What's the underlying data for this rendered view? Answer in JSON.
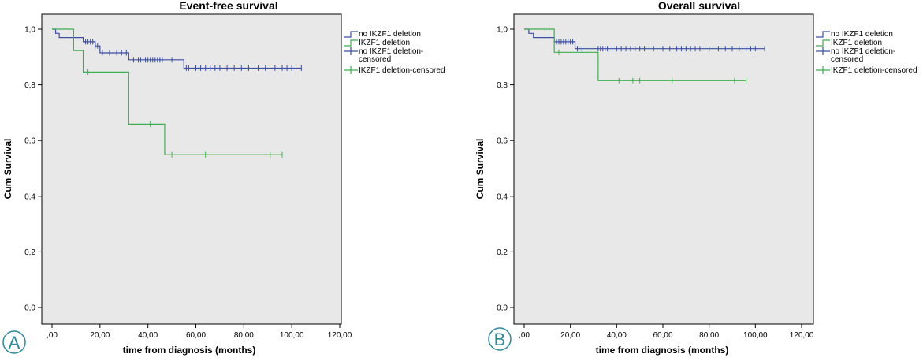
{
  "chart_data": [
    {
      "type": "line",
      "panel_label": "A",
      "title": "Event-free survival",
      "xlabel": "time from diagnosis (months)",
      "ylabel": "Cum Survival",
      "xlim": [
        0,
        120
      ],
      "ylim": [
        0,
        1
      ],
      "x_ticks": [
        ",00",
        "20,00",
        "40,00",
        "60,00",
        "80,00",
        "100,00",
        "120,00"
      ],
      "y_ticks": [
        "0,0",
        "0,2",
        "0,4",
        "0,6",
        "0,8",
        "1,0"
      ],
      "legend_position": "right",
      "legend": [
        "no IKZF1 deletion",
        "IKZF1 deletion",
        "no IKZF1 deletion-censored",
        "IKZF1 deletion-censored"
      ],
      "colors": {
        "no_deletion": "#3b4ea3",
        "deletion": "#3fae4e",
        "plot_bg": "#e8e8e8"
      },
      "series": [
        {
          "name": "no IKZF1 deletion",
          "color": "#3b4ea3",
          "x": [
            0,
            1.5,
            3,
            13,
            18,
            20,
            32,
            55,
            104
          ],
          "y": [
            1.0,
            0.985,
            0.97,
            0.955,
            0.94,
            0.915,
            0.89,
            0.86,
            0.86
          ],
          "censored_x": [
            14,
            15,
            16,
            17,
            18,
            19,
            21,
            24,
            27,
            29,
            31,
            34,
            36,
            37,
            38,
            39,
            40,
            41,
            42,
            43,
            44,
            45,
            46,
            50,
            56,
            57,
            60,
            62,
            64,
            66,
            68,
            70,
            73,
            76,
            79,
            82,
            86,
            89,
            93,
            96,
            98,
            100,
            104
          ]
        },
        {
          "name": "IKZF1 deletion",
          "color": "#3fae4e",
          "x": [
            0,
            9,
            13,
            32,
            47,
            96
          ],
          "y": [
            1.0,
            0.923,
            0.846,
            0.659,
            0.549,
            0.549
          ],
          "censored_x": [
            15,
            41,
            50,
            64,
            91,
            96
          ]
        }
      ]
    },
    {
      "type": "line",
      "panel_label": "B",
      "title": "Overall survival",
      "xlabel": "time from diagnosis (months)",
      "ylabel": "Cum Survival",
      "xlim": [
        0,
        120
      ],
      "ylim": [
        0,
        1
      ],
      "x_ticks": [
        ",00",
        "20,00",
        "40,00",
        "60,00",
        "80,00",
        "100,00",
        "120,00"
      ],
      "y_ticks": [
        "0,0",
        "0,2",
        "0,4",
        "0,6",
        "0,8",
        "1,0"
      ],
      "legend_position": "right",
      "legend": [
        "no IKZF1 deletion",
        "IKZF1 deletion",
        "no IKZF1 deletion-censored",
        "IKZF1 deletion-censored"
      ],
      "colors": {
        "no_deletion": "#3b4ea3",
        "deletion": "#3fae4e",
        "plot_bg": "#e8e8e8"
      },
      "series": [
        {
          "name": "no IKZF1 deletion",
          "color": "#3b4ea3",
          "x": [
            0,
            2,
            4,
            13,
            22,
            104
          ],
          "y": [
            1.0,
            0.985,
            0.97,
            0.955,
            0.93,
            0.93
          ],
          "censored_x": [
            14,
            15,
            16,
            17,
            18,
            19,
            20,
            21,
            23,
            25,
            32,
            33,
            34,
            35,
            36,
            38,
            40,
            42,
            44,
            46,
            48,
            50,
            52,
            56,
            60,
            63,
            66,
            68,
            70,
            72,
            74,
            76,
            80,
            84,
            87,
            90,
            93,
            96,
            98,
            100,
            104
          ]
        },
        {
          "name": "IKZF1 deletion",
          "color": "#3fae4e",
          "x": [
            0,
            13,
            32,
            96
          ],
          "y": [
            1.0,
            0.917,
            0.815,
            0.815
          ],
          "censored_x": [
            9,
            15,
            41,
            47,
            50,
            64,
            91,
            96
          ]
        }
      ]
    }
  ]
}
